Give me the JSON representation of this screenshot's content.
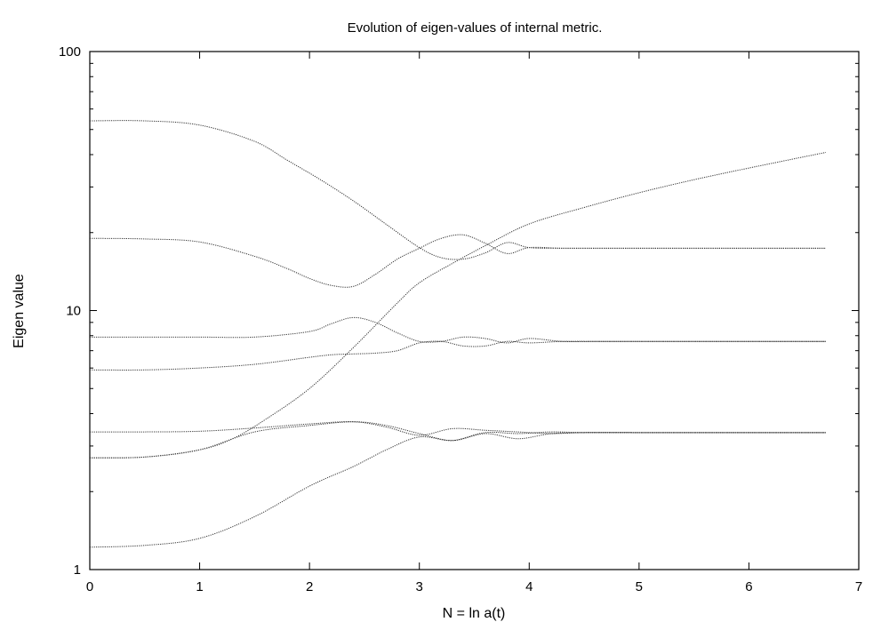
{
  "chart_data": {
    "type": "line",
    "title": "Evolution of eigen-values of internal metric.",
    "xlabel": "N = ln a(t)",
    "ylabel": "Eigen value",
    "xlim": [
      0,
      7
    ],
    "ylim": [
      1,
      100
    ],
    "yscale": "log",
    "xticks": [
      "0",
      "1",
      "2",
      "3",
      "4",
      "5",
      "6",
      "7"
    ],
    "yticks": [
      "1",
      "10",
      "100"
    ],
    "grid": false,
    "line_color": "#333333",
    "series": [
      {
        "x": [
          0,
          0.5,
          1.0,
          1.5,
          1.8,
          2.1,
          2.4,
          2.7,
          3.0,
          3.2,
          3.4,
          3.6,
          3.8,
          4.0,
          4.3,
          4.6,
          5.0,
          5.5,
          6.0,
          6.7
        ],
        "y": [
          54,
          54,
          52,
          45,
          38,
          32,
          26.5,
          21.5,
          17.5,
          16.0,
          15.8,
          16.7,
          18.3,
          17.5,
          17.4,
          17.4,
          17.4,
          17.4,
          17.4,
          17.4
        ]
      },
      {
        "x": [
          0,
          0.5,
          1.0,
          1.5,
          1.8,
          2.0,
          2.2,
          2.4,
          2.6,
          2.8,
          3.0,
          3.2,
          3.4,
          3.6,
          3.8,
          4.0,
          4.3,
          4.6,
          5.0,
          5.5,
          6.0,
          6.7
        ],
        "y": [
          19,
          18.9,
          18.4,
          16.2,
          14.5,
          13.3,
          12.5,
          12.4,
          13.8,
          15.8,
          17.4,
          19.0,
          19.6,
          18.2,
          16.6,
          17.5,
          17.4,
          17.4,
          17.4,
          17.4,
          17.4,
          17.4
        ]
      },
      {
        "x": [
          0,
          0.5,
          1.0,
          1.5,
          2.0,
          2.2,
          2.4,
          2.6,
          2.8,
          3.0,
          3.2,
          3.4,
          3.6,
          3.8,
          4.0,
          4.3,
          4.6,
          5.0,
          5.5,
          6.0,
          6.7
        ],
        "y": [
          7.9,
          7.9,
          7.9,
          7.9,
          8.3,
          8.9,
          9.4,
          9.0,
          8.2,
          7.6,
          7.6,
          7.9,
          7.8,
          7.5,
          7.8,
          7.6,
          7.6,
          7.6,
          7.6,
          7.6,
          7.6
        ]
      },
      {
        "x": [
          0,
          0.5,
          1.0,
          1.5,
          2.0,
          2.2,
          2.4,
          2.6,
          2.8,
          3.0,
          3.2,
          3.4,
          3.6,
          3.8,
          4.0,
          4.3,
          4.6,
          5.0,
          5.5,
          6.0,
          6.7
        ],
        "y": [
          5.9,
          5.9,
          6.0,
          6.2,
          6.6,
          6.75,
          6.8,
          6.85,
          7.0,
          7.5,
          7.6,
          7.3,
          7.3,
          7.6,
          7.5,
          7.6,
          7.6,
          7.6,
          7.6,
          7.6,
          7.6
        ]
      },
      {
        "x": [
          0,
          0.5,
          1.0,
          1.5,
          2.0,
          2.4,
          2.7,
          3.0,
          3.3,
          3.6,
          3.9,
          4.2,
          4.5,
          5.0,
          5.5,
          6.0,
          6.7
        ],
        "y": [
          3.4,
          3.4,
          3.42,
          3.52,
          3.65,
          3.72,
          3.55,
          3.3,
          3.5,
          3.45,
          3.4,
          3.35,
          3.38,
          3.38,
          3.38,
          3.38,
          3.38
        ]
      },
      {
        "x": [
          0,
          0.5,
          1.0,
          1.5,
          2.0,
          2.4,
          2.7,
          3.0,
          3.3,
          3.6,
          3.9,
          4.2,
          4.5,
          5.0,
          5.5,
          6.0,
          6.7
        ],
        "y": [
          2.7,
          2.72,
          2.9,
          3.4,
          3.6,
          3.72,
          3.6,
          3.35,
          3.15,
          3.35,
          3.2,
          3.35,
          3.38,
          3.38,
          3.38,
          3.38,
          3.38
        ]
      },
      {
        "x": [
          0,
          0.5,
          1.0,
          1.3,
          1.6,
          2.0,
          2.4,
          2.8,
          3.0,
          3.3,
          3.6,
          4.0,
          4.5,
          5.0,
          5.5,
          6.0,
          6.7
        ],
        "y": [
          2.7,
          2.72,
          2.9,
          3.2,
          3.8,
          5.0,
          7.2,
          10.7,
          12.8,
          15.2,
          17.8,
          21.6,
          25.0,
          28.5,
          32.0,
          35.5,
          40.8
        ]
      },
      {
        "x": [
          0,
          0.5,
          1.0,
          1.5,
          2.0,
          2.4,
          2.7,
          3.0,
          3.3,
          3.6,
          3.9,
          4.2,
          4.5,
          5.0,
          5.5,
          6.0,
          6.7
        ],
        "y": [
          1.22,
          1.24,
          1.32,
          1.6,
          2.1,
          2.5,
          2.9,
          3.25,
          3.15,
          3.38,
          3.35,
          3.4,
          3.38,
          3.38,
          3.38,
          3.38,
          3.38
        ]
      }
    ]
  }
}
